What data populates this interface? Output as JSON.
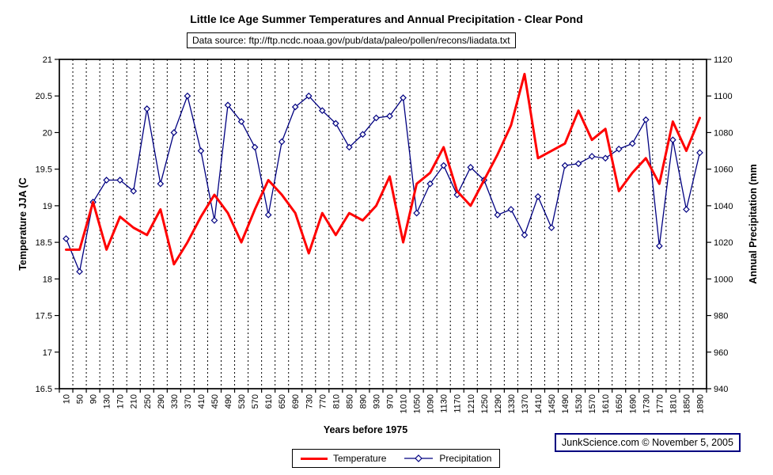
{
  "title": "Little Ice Age Summer Temperatures and Annual Precipitation - Clear Pond",
  "source_note": "Data source: ftp://ftp.ncdc.noaa.gov/pub/data/paleo/pollen/recons/liadata.txt",
  "credit": "JunkScience.com ©  November 5, 2005",
  "colors": {
    "temperature": "#ff0000",
    "precipitation": "#000080",
    "grid": "#000000"
  },
  "chart_data": {
    "type": "line",
    "title": "Little Ice Age Summer Temperatures and Annual Precipitation - Clear Pond",
    "xlabel": "Years before 1975",
    "ylabel_left": "Temperature JJA (C",
    "ylabel_right": "Annual Precipitation (mm",
    "grid": "vertical-dashed",
    "legend_position": "bottom",
    "left_axis": {
      "min": 16.5,
      "max": 21,
      "step": 0.5
    },
    "right_axis": {
      "min": 940,
      "max": 1120,
      "step": 20
    },
    "x": [
      10,
      50,
      90,
      130,
      170,
      210,
      250,
      290,
      330,
      370,
      410,
      450,
      490,
      530,
      570,
      610,
      650,
      690,
      730,
      770,
      810,
      850,
      890,
      930,
      970,
      1010,
      1050,
      1090,
      1130,
      1170,
      1210,
      1250,
      1290,
      1330,
      1370,
      1410,
      1450,
      1490,
      1530,
      1570,
      1610,
      1650,
      1690,
      1730,
      1770,
      1810,
      1850,
      1890
    ],
    "series": [
      {
        "name": "Temperature",
        "axis": "left",
        "color": "#ff0000",
        "marker": "none",
        "values": [
          18.4,
          18.4,
          19.05,
          18.4,
          18.85,
          18.7,
          18.6,
          18.95,
          18.2,
          18.5,
          18.85,
          19.15,
          18.9,
          18.5,
          18.95,
          19.35,
          19.15,
          18.9,
          18.35,
          18.9,
          18.6,
          18.9,
          18.8,
          19.0,
          19.4,
          18.5,
          19.3,
          19.45,
          19.8,
          19.2,
          19.0,
          19.35,
          19.7,
          20.1,
          20.8,
          19.65,
          19.75,
          19.85,
          20.3,
          19.9,
          20.05,
          19.2,
          19.45,
          19.65,
          19.3,
          20.15,
          19.75,
          20.2
        ]
      },
      {
        "name": "Precipitation",
        "axis": "right",
        "color": "#000080",
        "marker": "diamond",
        "values": [
          1022,
          1004,
          1042,
          1054,
          1054,
          1048,
          1093,
          1052,
          1080,
          1100,
          1070,
          1032,
          1095,
          1086,
          1072,
          1035,
          1075,
          1094,
          1100,
          1092,
          1085,
          1072,
          1079,
          1088,
          1089,
          1099,
          1036,
          1052,
          1062,
          1046,
          1061,
          1054,
          1035,
          1038,
          1024,
          1045,
          1028,
          1062,
          1063,
          1067,
          1066,
          1071,
          1074,
          1087,
          1018,
          1076,
          1038,
          1069
        ]
      }
    ]
  }
}
